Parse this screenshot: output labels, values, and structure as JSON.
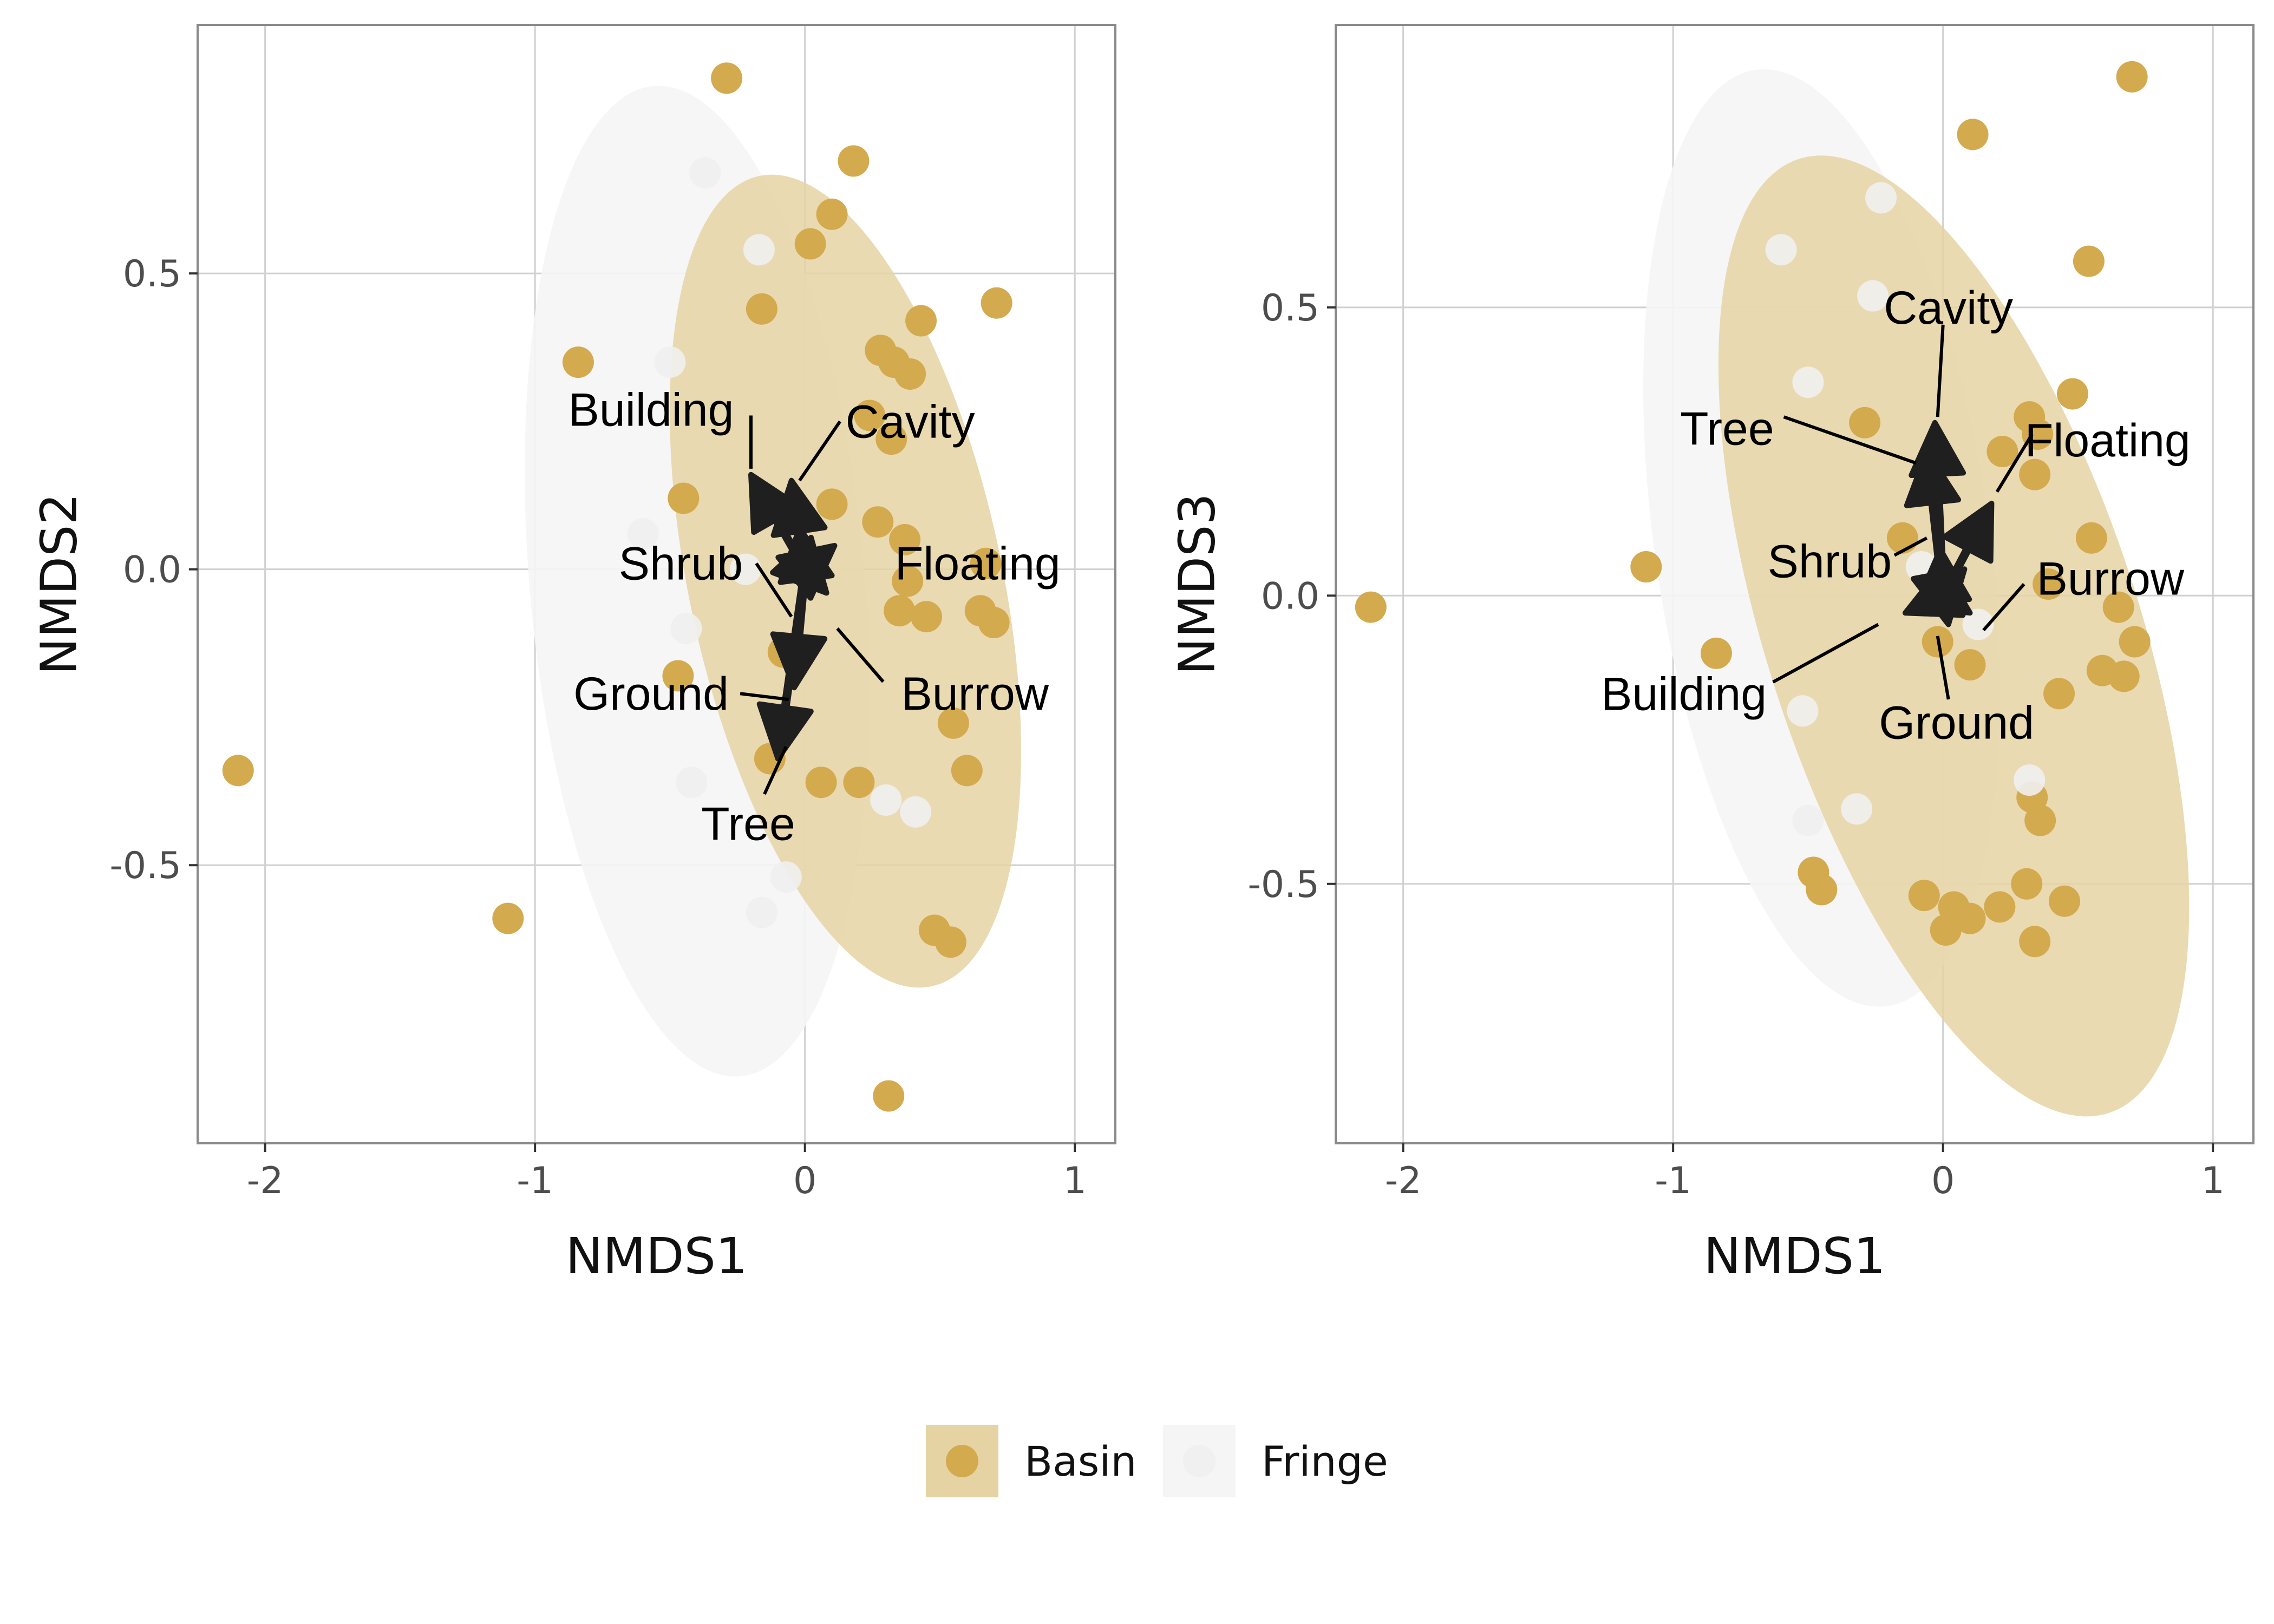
{
  "colors": {
    "basin": "#d4aa4f",
    "basin_ellipse": "#e6d3a4",
    "fringe": "#f0f0f0",
    "fringe_ellipse": "#f5f5f5",
    "arrow": "#1f1f1f",
    "grid": "#d0d0d0",
    "frame": "#8a8a8a"
  },
  "legend": {
    "entries": [
      {
        "key": "basin",
        "label": "Basin"
      },
      {
        "key": "fringe",
        "label": "Fringe"
      }
    ]
  },
  "chart_data": [
    {
      "type": "scatter",
      "xlabel": "NMDS1",
      "ylabel": "NMDS2",
      "xlim": [
        -2.25,
        1.15
      ],
      "ylim": [
        -0.97,
        0.92
      ],
      "xticks": [
        -2,
        -1,
        0,
        1
      ],
      "xtick_labels": [
        "-2",
        "-1",
        "0",
        "1"
      ],
      "yticks": [
        -0.5,
        0.0,
        0.5
      ],
      "ytick_labels": [
        "-0.5",
        "0.0",
        "0.5"
      ],
      "grid": true,
      "ellipses": [
        {
          "group": "fringe",
          "cx": -0.4,
          "cy": -0.02,
          "rx": 0.62,
          "ry": 0.84,
          "angle": -5
        },
        {
          "group": "basin",
          "cx": 0.15,
          "cy": -0.02,
          "rx": 0.58,
          "ry": 0.7,
          "angle": -12
        }
      ],
      "points": [
        {
          "group": "basin",
          "x": -0.29,
          "y": 0.83
        },
        {
          "group": "basin",
          "x": 0.1,
          "y": 0.6
        },
        {
          "group": "basin",
          "x": 0.71,
          "y": 0.45
        },
        {
          "group": "basin",
          "x": 0.43,
          "y": 0.42
        },
        {
          "group": "basin",
          "x": 0.28,
          "y": 0.37
        },
        {
          "group": "basin",
          "x": 0.33,
          "y": 0.35
        },
        {
          "group": "basin",
          "x": 0.39,
          "y": 0.33
        },
        {
          "group": "basin",
          "x": 0.24,
          "y": 0.26
        },
        {
          "group": "basin",
          "x": 0.32,
          "y": 0.22
        },
        {
          "group": "basin",
          "x": 0.27,
          "y": 0.08
        },
        {
          "group": "basin",
          "x": 0.37,
          "y": 0.05
        },
        {
          "group": "basin",
          "x": 0.38,
          "y": -0.02
        },
        {
          "group": "basin",
          "x": 0.67,
          "y": 0.01
        },
        {
          "group": "basin",
          "x": 0.35,
          "y": -0.07
        },
        {
          "group": "basin",
          "x": 0.45,
          "y": -0.08
        },
        {
          "group": "basin",
          "x": 0.65,
          "y": -0.07
        },
        {
          "group": "basin",
          "x": 0.7,
          "y": -0.09
        },
        {
          "group": "basin",
          "x": 0.55,
          "y": -0.26
        },
        {
          "group": "basin",
          "x": 0.6,
          "y": -0.34
        },
        {
          "group": "basin",
          "x": 0.48,
          "y": -0.61
        },
        {
          "group": "basin",
          "x": 0.54,
          "y": -0.63
        },
        {
          "group": "basin",
          "x": 0.31,
          "y": -0.89
        },
        {
          "group": "basin",
          "x": -2.1,
          "y": -0.34
        },
        {
          "group": "basin",
          "x": -1.1,
          "y": -0.59
        },
        {
          "group": "basin",
          "x": -0.84,
          "y": 0.35
        },
        {
          "group": "basin",
          "x": 0.02,
          "y": 0.55
        },
        {
          "group": "basin",
          "x": -0.16,
          "y": 0.44
        },
        {
          "group": "basin",
          "x": 0.18,
          "y": 0.69
        },
        {
          "group": "basin",
          "x": -0.45,
          "y": 0.12
        },
        {
          "group": "basin",
          "x": -0.47,
          "y": -0.18
        },
        {
          "group": "basin",
          "x": -0.13,
          "y": -0.32
        },
        {
          "group": "basin",
          "x": 0.06,
          "y": -0.36
        },
        {
          "group": "basin",
          "x": 0.2,
          "y": -0.36
        },
        {
          "group": "basin",
          "x": -0.08,
          "y": -0.14
        },
        {
          "group": "basin",
          "x": 0.1,
          "y": 0.11
        },
        {
          "group": "fringe",
          "x": -0.37,
          "y": 0.67
        },
        {
          "group": "fringe",
          "x": -0.17,
          "y": 0.54
        },
        {
          "group": "fringe",
          "x": -0.5,
          "y": 0.35
        },
        {
          "group": "fringe",
          "x": -0.6,
          "y": 0.06
        },
        {
          "group": "fringe",
          "x": -0.44,
          "y": -0.1
        },
        {
          "group": "fringe",
          "x": -0.42,
          "y": -0.36
        },
        {
          "group": "fringe",
          "x": -0.16,
          "y": -0.58
        },
        {
          "group": "fringe",
          "x": 0.3,
          "y": -0.39
        },
        {
          "group": "fringe",
          "x": 0.41,
          "y": -0.41
        },
        {
          "group": "fringe",
          "x": -0.22,
          "y": 0.0
        },
        {
          "group": "fringe",
          "x": -0.07,
          "y": -0.52
        }
      ],
      "vectors": [
        {
          "label": "Building",
          "x": -0.2,
          "y": 0.16
        },
        {
          "label": "Cavity",
          "x": -0.05,
          "y": 0.15
        },
        {
          "label": "Shrub",
          "x": -0.02,
          "y": 0.07
        },
        {
          "label": "Floating",
          "x": 0.11,
          "y": 0.04
        },
        {
          "label": "Burrow",
          "x": 0.08,
          "y": -0.04
        },
        {
          "label": "Ground",
          "x": -0.04,
          "y": -0.2
        },
        {
          "label": "Tree",
          "x": -0.1,
          "y": -0.32
        }
      ],
      "labels": [
        {
          "text": "Building",
          "x": -0.57,
          "y": 0.27,
          "lx": -0.2,
          "ly": 0.26,
          "ex": -0.2,
          "ey": 0.17
        },
        {
          "text": "Cavity",
          "x": 0.39,
          "y": 0.25,
          "lx": 0.13,
          "ly": 0.25,
          "ex": -0.02,
          "ey": 0.15
        },
        {
          "text": "Shrub",
          "x": -0.46,
          "y": 0.01,
          "lx": -0.18,
          "ly": 0.01,
          "ex": -0.05,
          "ey": -0.08
        },
        {
          "text": "Floating",
          "x": 0.64,
          "y": 0.01,
          "lx": 0.0,
          "ly": 0.0,
          "ex": 0.0,
          "ey": 0.0
        },
        {
          "text": "Burrow",
          "x": 0.63,
          "y": -0.21,
          "lx": 0.29,
          "ly": -0.19,
          "ex": 0.12,
          "ey": -0.1
        },
        {
          "text": "Ground",
          "x": -0.57,
          "y": -0.21,
          "lx": -0.24,
          "ly": -0.21,
          "ex": -0.06,
          "ey": -0.22
        },
        {
          "text": "Tree",
          "x": -0.21,
          "y": -0.43,
          "lx": -0.15,
          "ly": -0.38,
          "ex": -0.07,
          "ey": -0.3
        }
      ]
    },
    {
      "type": "scatter",
      "xlabel": "NMDS1",
      "ylabel": "NMDS3",
      "xlim": [
        -2.25,
        1.15
      ],
      "ylim": [
        -0.95,
        0.99
      ],
      "xticks": [
        -2,
        -1,
        0,
        1
      ],
      "xtick_labels": [
        "-2",
        "-1",
        "0",
        "1"
      ],
      "yticks": [
        -0.5,
        0.0,
        0.5
      ],
      "ytick_labels": [
        "-0.5",
        "0.0",
        "0.5"
      ],
      "grid": true,
      "ellipses": [
        {
          "group": "fringe",
          "cx": -0.45,
          "cy": 0.1,
          "rx": 0.62,
          "ry": 0.82,
          "angle": -8
        },
        {
          "group": "basin",
          "cx": 0.04,
          "cy": -0.07,
          "rx": 0.69,
          "ry": 0.87,
          "angle": -18
        }
      ],
      "points": [
        {
          "group": "basin",
          "x": 0.7,
          "y": 0.9
        },
        {
          "group": "basin",
          "x": 0.11,
          "y": 0.8
        },
        {
          "group": "basin",
          "x": 0.54,
          "y": 0.58
        },
        {
          "group": "basin",
          "x": 0.48,
          "y": 0.35
        },
        {
          "group": "basin",
          "x": 0.32,
          "y": 0.31
        },
        {
          "group": "basin",
          "x": 0.35,
          "y": 0.28
        },
        {
          "group": "basin",
          "x": 0.34,
          "y": 0.21
        },
        {
          "group": "basin",
          "x": 0.55,
          "y": 0.1
        },
        {
          "group": "basin",
          "x": 0.65,
          "y": -0.02
        },
        {
          "group": "basin",
          "x": 0.71,
          "y": -0.08
        },
        {
          "group": "basin",
          "x": 0.59,
          "y": -0.13
        },
        {
          "group": "basin",
          "x": 0.67,
          "y": -0.14
        },
        {
          "group": "basin",
          "x": 0.43,
          "y": -0.17
        },
        {
          "group": "basin",
          "x": 0.33,
          "y": -0.35
        },
        {
          "group": "basin",
          "x": 0.36,
          "y": -0.39
        },
        {
          "group": "basin",
          "x": -0.48,
          "y": -0.48
        },
        {
          "group": "basin",
          "x": -0.45,
          "y": -0.51
        },
        {
          "group": "basin",
          "x": 0.31,
          "y": -0.5
        },
        {
          "group": "basin",
          "x": 0.45,
          "y": -0.53
        },
        {
          "group": "basin",
          "x": 0.21,
          "y": -0.54
        },
        {
          "group": "basin",
          "x": 0.04,
          "y": -0.54
        },
        {
          "group": "basin",
          "x": 0.1,
          "y": -0.56
        },
        {
          "group": "basin",
          "x": 0.01,
          "y": -0.58
        },
        {
          "group": "basin",
          "x": 0.34,
          "y": -0.6
        },
        {
          "group": "basin",
          "x": -2.12,
          "y": -0.02
        },
        {
          "group": "basin",
          "x": -1.1,
          "y": 0.05
        },
        {
          "group": "basin",
          "x": -0.84,
          "y": -0.1
        },
        {
          "group": "basin",
          "x": -0.29,
          "y": 0.3
        },
        {
          "group": "basin",
          "x": -0.15,
          "y": 0.1
        },
        {
          "group": "basin",
          "x": 0.22,
          "y": 0.25
        },
        {
          "group": "basin",
          "x": 0.39,
          "y": 0.02
        },
        {
          "group": "basin",
          "x": -0.02,
          "y": -0.08
        },
        {
          "group": "basin",
          "x": 0.1,
          "y": -0.12
        },
        {
          "group": "basin",
          "x": -0.07,
          "y": -0.52
        },
        {
          "group": "fringe",
          "x": -0.23,
          "y": 0.69
        },
        {
          "group": "fringe",
          "x": -0.6,
          "y": 0.6
        },
        {
          "group": "fringe",
          "x": -0.26,
          "y": 0.52
        },
        {
          "group": "fringe",
          "x": -0.5,
          "y": 0.37
        },
        {
          "group": "fringe",
          "x": -0.52,
          "y": -0.2
        },
        {
          "group": "fringe",
          "x": -0.5,
          "y": -0.39
        },
        {
          "group": "fringe",
          "x": -0.32,
          "y": -0.37
        },
        {
          "group": "fringe",
          "x": 0.32,
          "y": -0.32
        },
        {
          "group": "fringe",
          "x": -0.08,
          "y": 0.05
        },
        {
          "group": "fringe",
          "x": 0.13,
          "y": -0.05
        }
      ],
      "vectors": [
        {
          "label": "Cavity",
          "x": -0.03,
          "y": 0.3
        },
        {
          "label": "Tree",
          "x": -0.06,
          "y": 0.25
        },
        {
          "label": "Floating",
          "x": 0.18,
          "y": 0.16
        },
        {
          "label": "Shrub",
          "x": -0.01,
          "y": 0.08
        },
        {
          "label": "Burrow",
          "x": 0.1,
          "y": -0.03
        },
        {
          "label": "Building",
          "x": -0.14,
          "y": -0.03
        },
        {
          "label": "Ground",
          "x": 0.02,
          "y": -0.05
        }
      ],
      "labels": [
        {
          "text": "Cavity",
          "x": 0.02,
          "y": 0.5,
          "lx": 0.0,
          "ly": 0.47,
          "ex": -0.02,
          "ey": 0.31
        },
        {
          "text": "Tree",
          "x": -0.8,
          "y": 0.29,
          "lx": -0.59,
          "ly": 0.31,
          "ex": -0.1,
          "ey": 0.23
        },
        {
          "text": "Floating",
          "x": 0.61,
          "y": 0.27,
          "lx": 0.33,
          "ly": 0.28,
          "ex": 0.2,
          "ey": 0.18
        },
        {
          "text": "Shrub",
          "x": -0.42,
          "y": 0.06,
          "lx": -0.18,
          "ly": 0.07,
          "ex": -0.06,
          "ey": 0.1
        },
        {
          "text": "Burrow",
          "x": 0.62,
          "y": 0.03,
          "lx": 0.3,
          "ly": 0.02,
          "ex": 0.15,
          "ey": -0.06
        },
        {
          "text": "Building",
          "x": -0.96,
          "y": -0.17,
          "lx": -0.63,
          "ly": -0.15,
          "ex": -0.24,
          "ey": -0.05
        },
        {
          "text": "Ground",
          "x": 0.05,
          "y": -0.22,
          "lx": 0.02,
          "ly": -0.18,
          "ex": -0.02,
          "ey": -0.07
        }
      ]
    }
  ]
}
